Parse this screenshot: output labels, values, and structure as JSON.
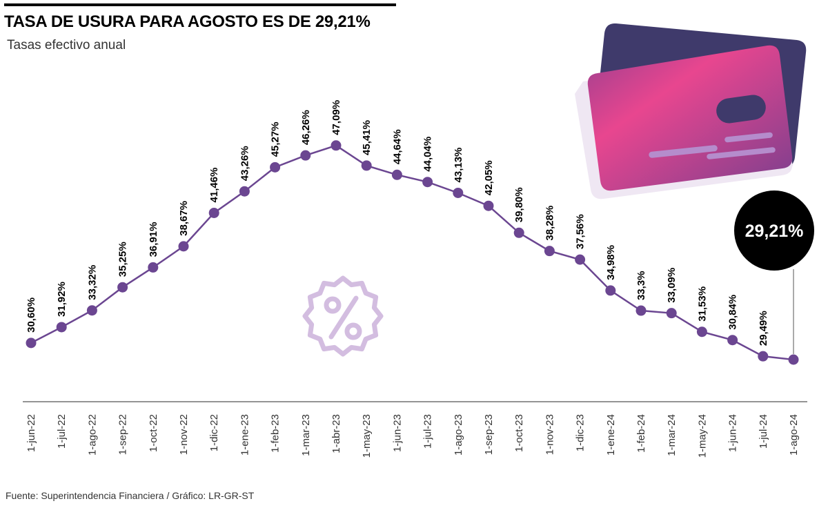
{
  "header": {
    "title": "TASA DE USURA PARA AGOSTO ES DE 29,21%",
    "subtitle": "Tasas efectivo anual"
  },
  "footer": {
    "source": "Fuente: Superintendencia Financiera / Gráfico: LR-GR-ST"
  },
  "highlight": {
    "label": "29,21%",
    "color": "#000000"
  },
  "colors": {
    "line": "#6b4691",
    "card_back": "#3f3a6b",
    "card_front_start": "#e8468f",
    "card_front_end": "#7a3f8e",
    "percent_icon": "#d3bde0"
  },
  "icons": [
    "credit-cards-icon",
    "percent-badge-icon"
  ],
  "chart_data": {
    "type": "line",
    "categories": [
      "1-jun-22",
      "1-jul-22",
      "1-ago-22",
      "1-sep-22",
      "1-oct-22",
      "1-nov-22",
      "1-dic-22",
      "1-ene-23",
      "1-feb-23",
      "1-mar-23",
      "1-abr-23",
      "1-may-23",
      "1-jun-23",
      "1-jul-23",
      "1-ago-23",
      "1-sep-23",
      "1-oct-23",
      "1-nov-23",
      "1-dic-23",
      "1-ene-24",
      "1-feb-24",
      "1-mar-24",
      "1-may-24",
      "1-jun-24",
      "1-jul-24",
      "1-ago-24"
    ],
    "values": [
      30.6,
      31.92,
      33.32,
      35.25,
      36.91,
      38.67,
      41.46,
      43.26,
      45.27,
      46.26,
      47.09,
      45.41,
      44.64,
      44.04,
      43.13,
      42.05,
      39.8,
      38.28,
      37.56,
      34.98,
      33.3,
      33.09,
      31.53,
      30.84,
      29.49,
      29.21
    ],
    "data_labels": [
      "30,60%",
      "31,92%",
      "33,32%",
      "35,25%",
      "36,91%",
      "38,67%",
      "41,46%",
      "43,26%",
      "45,27%",
      "46,26%",
      "47,09%",
      "45,41%",
      "44,64%",
      "44,04%",
      "43,13%",
      "42,05%",
      "39,80%",
      "38,28%",
      "37,56%",
      "34,98%",
      "33,3%",
      "33,09%",
      "31,53%",
      "30,84%",
      "29,49%",
      ""
    ],
    "grid": false,
    "legend": "none"
  }
}
